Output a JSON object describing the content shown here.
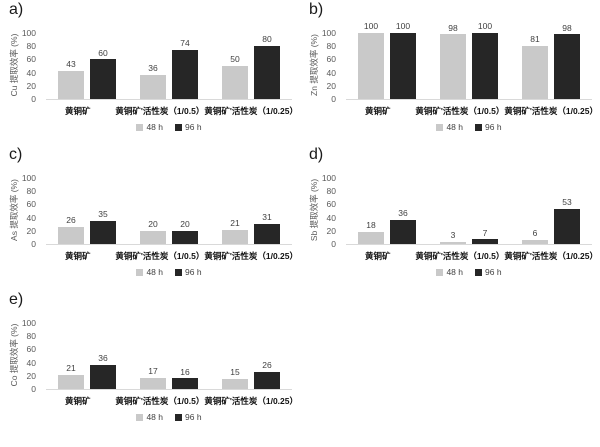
{
  "figure": {
    "legend": [
      {
        "label": "48 h",
        "color": "#c9c9c9"
      },
      {
        "label": "96 h",
        "color": "#262626"
      }
    ],
    "colors": {
      "bar_48h": "#c9c9c9",
      "bar_96h": "#262626",
      "axis_line": "#d9d9d9",
      "tick_text": "#595959",
      "value_text": "#404040",
      "category_text": "#111111"
    }
  },
  "chart_data": [
    {
      "id": "a",
      "panel_label": "a)",
      "type": "bar",
      "ylabel": "Cu 提取效率 (%)",
      "xlabel": "",
      "ylim": [
        0,
        100
      ],
      "yticks": [
        0,
        20,
        40,
        60,
        80,
        100
      ],
      "grid": false,
      "legend_position": "bottom",
      "categories": [
        "黄铜矿",
        "黄铜矿'活性炭（1/0.5）",
        "黄铜矿'活性炭（1/0.25）"
      ],
      "series": [
        {
          "name": "48 h",
          "color": "#c9c9c9",
          "values": [
            43,
            36,
            50
          ]
        },
        {
          "name": "96 h",
          "color": "#262626",
          "values": [
            60,
            74,
            80
          ]
        }
      ]
    },
    {
      "id": "b",
      "panel_label": "b)",
      "type": "bar",
      "ylabel": "Zn 提取效率 (%)",
      "xlabel": "",
      "ylim": [
        0,
        100
      ],
      "yticks": [
        0,
        20,
        40,
        60,
        80,
        100
      ],
      "grid": false,
      "legend_position": "bottom",
      "categories": [
        "黄铜矿",
        "黄铜矿'活性炭（1/0.5）",
        "黄铜矿'活性炭（1/0.25）"
      ],
      "series": [
        {
          "name": "48 h",
          "color": "#c9c9c9",
          "values": [
            100,
            98,
            81
          ]
        },
        {
          "name": "96 h",
          "color": "#262626",
          "values": [
            100,
            100,
            98
          ]
        }
      ]
    },
    {
      "id": "c",
      "panel_label": "c)",
      "type": "bar",
      "ylabel": "As 提取效率 (%)",
      "xlabel": "",
      "ylim": [
        0,
        100
      ],
      "yticks": [
        0,
        20,
        40,
        60,
        80,
        100
      ],
      "grid": false,
      "legend_position": "bottom",
      "categories": [
        "黄铜矿",
        "黄铜矿'活性炭（1/0.5）",
        "黄铜矿'活性炭（1/0.25）"
      ],
      "series": [
        {
          "name": "48 h",
          "color": "#c9c9c9",
          "values": [
            26,
            20,
            21
          ]
        },
        {
          "name": "96 h",
          "color": "#262626",
          "values": [
            35,
            20,
            31
          ]
        }
      ]
    },
    {
      "id": "d",
      "panel_label": "d)",
      "type": "bar",
      "ylabel": "Sb 提取效率 (%)",
      "xlabel": "",
      "ylim": [
        0,
        100
      ],
      "yticks": [
        0,
        20,
        40,
        60,
        80,
        100
      ],
      "grid": false,
      "legend_position": "bottom",
      "categories": [
        "黄铜矿",
        "黄铜矿'活性炭（1/0.5）",
        "黄铜矿'活性炭（1/0.25）"
      ],
      "series": [
        {
          "name": "48 h",
          "color": "#c9c9c9",
          "values": [
            18,
            3,
            6
          ]
        },
        {
          "name": "96 h",
          "color": "#262626",
          "values": [
            36,
            7,
            53
          ]
        }
      ]
    },
    {
      "id": "e",
      "panel_label": "e)",
      "type": "bar",
      "ylabel": "Co 提取效率 (%)",
      "xlabel": "",
      "ylim": [
        0,
        100
      ],
      "yticks": [
        0,
        20,
        40,
        60,
        80,
        100
      ],
      "grid": false,
      "legend_position": "bottom",
      "categories": [
        "黄铜矿",
        "黄铜矿'活性炭（1/0.5）",
        "黄铜矿'活性炭（1/0.25）"
      ],
      "series": [
        {
          "name": "48 h",
          "color": "#c9c9c9",
          "values": [
            21,
            17,
            15
          ]
        },
        {
          "name": "96 h",
          "color": "#262626",
          "values": [
            36,
            16,
            26
          ]
        }
      ]
    }
  ]
}
